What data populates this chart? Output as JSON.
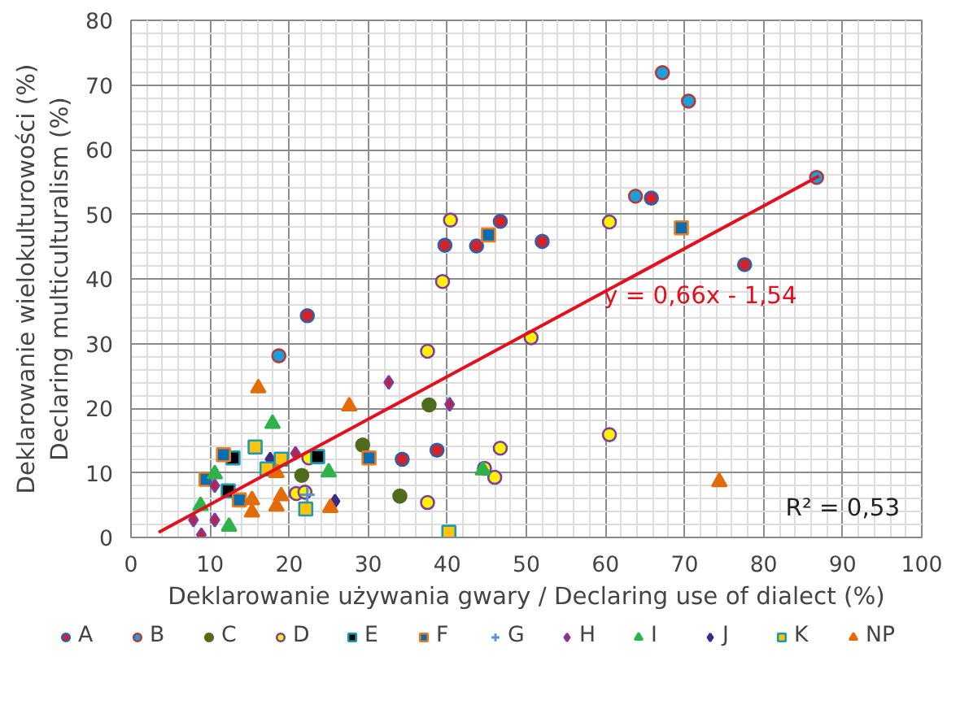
{
  "chart_data": {
    "type": "scatter",
    "xlabel": "Deklarowanie używania gwary / Declaring use of dialect (%)",
    "ylabel": "Deklarowanie wielokulturowości (%)\nDeclaring multiculturalism (%)",
    "xlim": [
      0,
      100
    ],
    "ylim": [
      0,
      80
    ],
    "xticks": [
      0,
      10,
      20,
      30,
      40,
      50,
      60,
      70,
      80,
      90,
      100
    ],
    "yticks": [
      0,
      10,
      20,
      30,
      40,
      50,
      60,
      70,
      80
    ],
    "grid": true,
    "legend": "bottom",
    "annotations": [
      "y = 0,66x - 1,54",
      "R² = 0,53"
    ],
    "series": [
      {
        "name": "A",
        "color": "#d2232a",
        "marker": "circle",
        "x": [
          39.7,
          43.7,
          46.7,
          52.0,
          34.3,
          38.7,
          65.8,
          77.6,
          22.3
        ],
        "values": [
          45.2,
          45.1,
          48.9,
          45.8,
          12.1,
          13.5,
          52.5,
          42.2,
          34.3
        ]
      },
      {
        "name": "B",
        "color": "#1ca0dc",
        "marker": "circle",
        "x": [
          18.7,
          67.2,
          70.5,
          63.8,
          86.7
        ],
        "values": [
          28.1,
          71.9,
          67.5,
          52.8,
          55.7
        ]
      },
      {
        "name": "C",
        "color": "#4f6b1d",
        "marker": "circle",
        "x": [
          37.7,
          29.3,
          21.6,
          34.0
        ],
        "values": [
          20.5,
          14.3,
          9.6,
          6.4
        ]
      },
      {
        "name": "D",
        "color": "#fff200",
        "marker": "circle",
        "x": [
          40.4,
          60.5,
          39.4,
          50.6,
          37.5,
          60.5,
          46.7,
          44.7,
          46.0,
          37.5,
          22.5,
          20.9,
          22.0
        ],
        "values": [
          49.1,
          48.8,
          39.6,
          30.9,
          28.8,
          15.9,
          13.8,
          10.7,
          9.3,
          5.4,
          12.3,
          6.8,
          7.0
        ]
      },
      {
        "name": "E",
        "color": "#000000",
        "marker": "square",
        "x": [
          12.9,
          12.3,
          23.6
        ],
        "values": [
          12.3,
          7.2,
          12.5
        ]
      },
      {
        "name": "F",
        "color": "#0b6cb0",
        "marker": "square",
        "x": [
          45.2,
          69.6,
          30.1,
          11.7,
          9.5,
          13.7
        ],
        "values": [
          46.8,
          47.9,
          12.3,
          12.8,
          9.0,
          5.8
        ]
      },
      {
        "name": "G",
        "color": "#5b8fd6",
        "marker": "cross",
        "x": [
          22.3
        ],
        "values": [
          6.6
        ]
      },
      {
        "name": "H",
        "color": "#c4203a",
        "marker": "diamond",
        "x": [
          32.6,
          40.3,
          20.8,
          10.6,
          7.9,
          10.6,
          8.9
        ],
        "values": [
          24.0,
          20.6,
          13.0,
          8.0,
          2.7,
          2.7,
          0.4
        ]
      },
      {
        "name": "I",
        "color": "#2db34a",
        "marker": "triangle",
        "x": [
          17.9,
          10.6,
          8.8,
          12.4,
          25.0,
          44.5
        ],
        "values": [
          17.6,
          9.8,
          4.9,
          1.7,
          10.1,
          10.4
        ]
      },
      {
        "name": "J",
        "color": "#3b2a85",
        "marker": "diamond",
        "x": [
          17.6,
          25.8
        ],
        "values": [
          12.1,
          5.6
        ]
      },
      {
        "name": "K",
        "color": "#ffc20e",
        "marker": "square",
        "x": [
          15.7,
          19.0,
          17.2,
          22.1,
          40.2
        ],
        "values": [
          14.0,
          12.1,
          10.6,
          4.4,
          0.8
        ]
      },
      {
        "name": "NP",
        "color": "#e36c0a",
        "marker": "triangle",
        "x": [
          16.1,
          27.6,
          18.4,
          19.0,
          15.3,
          15.3,
          18.4,
          25.2,
          74.4
        ],
        "values": [
          23.1,
          20.3,
          10.0,
          6.4,
          5.8,
          3.9,
          4.8,
          4.6,
          8.6
        ]
      },
      {
        "type": "line",
        "color": "#e3101e",
        "x": [
          3.5,
          87
        ],
        "values": [
          0.8,
          55.9
        ]
      }
    ]
  }
}
